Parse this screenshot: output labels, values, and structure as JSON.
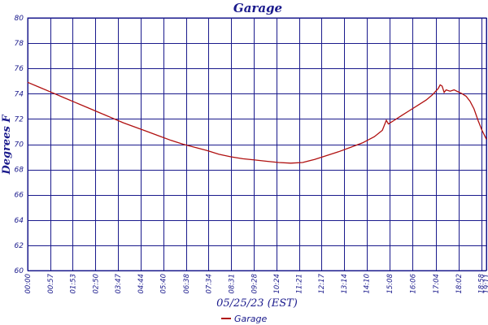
{
  "chart_data": {
    "type": "line",
    "title": "Garage",
    "xlabel": "05/25/23 (EST)",
    "ylabel": "Degrees F",
    "ylim": [
      60,
      80
    ],
    "yticks": [
      60,
      62,
      64,
      66,
      68,
      70,
      72,
      74,
      76,
      78,
      80
    ],
    "x_tick_labels": [
      "00:00",
      "00:57",
      "01:53",
      "02:50",
      "03:47",
      "04:44",
      "05:40",
      "06:38",
      "07:34",
      "08:31",
      "09:28",
      "10:24",
      "11:21",
      "12:17",
      "13:14",
      "14:10",
      "15:08",
      "16:06",
      "17:04",
      "18:02",
      "18:58",
      "19:11"
    ],
    "x_tick_minutes": [
      0,
      57,
      113,
      170,
      227,
      284,
      340,
      398,
      454,
      511,
      568,
      624,
      681,
      737,
      794,
      850,
      908,
      966,
      1024,
      1082,
      1138,
      1151
    ],
    "grid": true,
    "legend_position": "bottom-center",
    "line_color": "#b01010",
    "axis_color": "#1a1a8c",
    "series": [
      {
        "name": "Garage",
        "x_minutes": [
          0,
          30,
          60,
          90,
          120,
          150,
          180,
          210,
          240,
          270,
          300,
          330,
          360,
          390,
          420,
          450,
          480,
          510,
          540,
          570,
          600,
          630,
          660,
          690,
          720,
          750,
          780,
          810,
          840,
          870,
          890,
          900,
          905,
          910,
          920,
          940,
          960,
          980,
          1000,
          1015,
          1030,
          1035,
          1040,
          1045,
          1050,
          1060,
          1070,
          1080,
          1090,
          1100,
          1110,
          1120,
          1130,
          1140,
          1151
        ],
        "values": [
          74.9,
          74.5,
          74.1,
          73.7,
          73.3,
          72.9,
          72.5,
          72.1,
          71.7,
          71.35,
          71.0,
          70.65,
          70.3,
          70.0,
          69.75,
          69.5,
          69.2,
          69.0,
          68.85,
          68.75,
          68.65,
          68.55,
          68.5,
          68.55,
          68.8,
          69.1,
          69.4,
          69.75,
          70.1,
          70.6,
          71.1,
          71.9,
          71.6,
          71.7,
          71.9,
          72.3,
          72.7,
          73.1,
          73.5,
          73.9,
          74.4,
          74.7,
          74.6,
          74.1,
          74.3,
          74.2,
          74.3,
          74.15,
          74.0,
          73.8,
          73.4,
          72.8,
          71.9,
          71.1,
          70.4
        ]
      }
    ]
  }
}
